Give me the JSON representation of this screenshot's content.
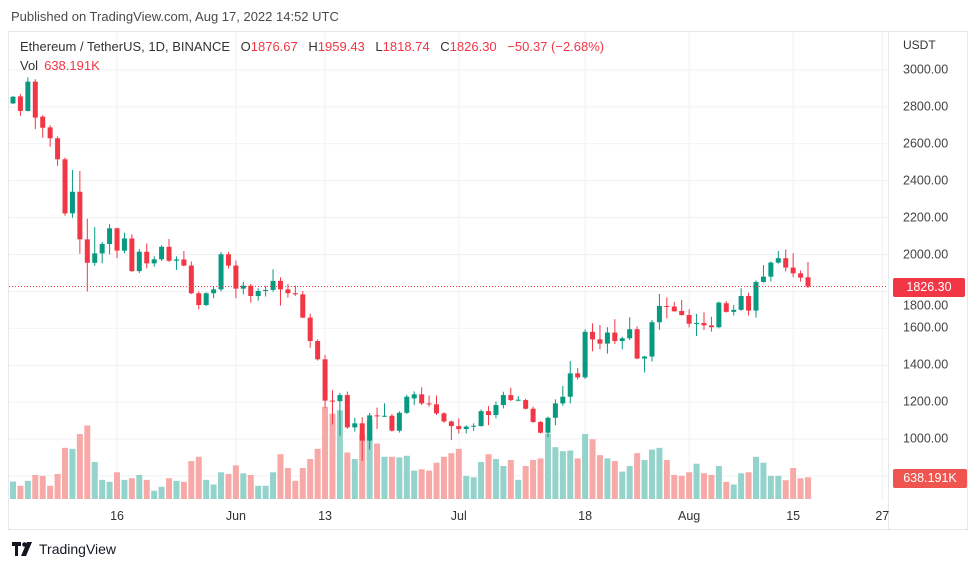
{
  "header": {
    "published": "Published on TradingView.com, Aug 17, 2022 14:52 UTC"
  },
  "legend": {
    "symbol": "Ethereum / TetherUS, 1D, BINANCE",
    "o_label": "O",
    "o": "1876.67",
    "h_label": "H",
    "h": "1959.43",
    "l_label": "L",
    "l": "1818.74",
    "c_label": "C",
    "c": "1826.30",
    "change": "−50.37 (−2.68%)",
    "vol_label": "Vol",
    "vol": "638.191K"
  },
  "axis": {
    "unit": "USDT",
    "last_price": "1826.30",
    "last_volume": "638.191K"
  },
  "footer": {
    "brand": "TradingView"
  },
  "colors": {
    "up": "#089981",
    "down": "#f23645",
    "up_volume": "#94d3cb",
    "down_volume": "#f7a9a8",
    "grid": "#f0f1f4"
  },
  "chart_data": {
    "type": "candlestick",
    "title": "Ethereum / TetherUS, 1D, BINANCE",
    "ylabel": "USDT",
    "ylim": [
      800,
      3100
    ],
    "grid": true,
    "y_ticks": [
      "3000.00",
      "2800.00",
      "2600.00",
      "2400.00",
      "2200.00",
      "2000.00",
      "1800.00",
      "1600.00",
      "1400.00",
      "1200.00",
      "1000.00"
    ],
    "x_ticks": [
      {
        "label": "16",
        "date": "2022-05-16"
      },
      {
        "label": "Jun",
        "date": "2022-06-01"
      },
      {
        "label": "13",
        "date": "2022-06-13"
      },
      {
        "label": "Jul",
        "date": "2022-07-01"
      },
      {
        "label": "18",
        "date": "2022-07-18"
      },
      {
        "label": "Aug",
        "date": "2022-08-01"
      },
      {
        "label": "15",
        "date": "2022-08-15"
      },
      {
        "label": "27",
        "date": "2022-08-27"
      }
    ],
    "columns": [
      "date",
      "open",
      "high",
      "low",
      "close",
      "volume_k"
    ],
    "candles": [
      [
        "2022-05-02",
        2819,
        2860,
        2815,
        2855,
        513
      ],
      [
        "2022-05-03",
        2857,
        2870,
        2752,
        2778,
        387
      ],
      [
        "2022-05-04",
        2778,
        2960,
        2775,
        2937,
        532
      ],
      [
        "2022-05-05",
        2937,
        2950,
        2680,
        2742,
        706
      ],
      [
        "2022-05-06",
        2747,
        2755,
        2633,
        2687,
        677
      ],
      [
        "2022-05-07",
        2689,
        2700,
        2584,
        2630,
        387
      ],
      [
        "2022-05-08",
        2630,
        2640,
        2481,
        2516,
        735
      ],
      [
        "2022-05-09",
        2516,
        2525,
        2210,
        2223,
        1499
      ],
      [
        "2022-05-10",
        2223,
        2458,
        2199,
        2340,
        1470
      ],
      [
        "2022-05-11",
        2340,
        2452,
        2004,
        2082,
        1905
      ],
      [
        "2022-05-12",
        2082,
        2194,
        1800,
        1955,
        2156
      ],
      [
        "2022-05-13",
        1955,
        2149,
        1939,
        2006,
        1083
      ],
      [
        "2022-05-14",
        2006,
        2068,
        1952,
        2057,
        561
      ],
      [
        "2022-05-15",
        2057,
        2165,
        2000,
        2142,
        503
      ],
      [
        "2022-05-16",
        2142,
        2145,
        1980,
        2021,
        783
      ],
      [
        "2022-05-17",
        2021,
        2118,
        2006,
        2087,
        561
      ],
      [
        "2022-05-18",
        2087,
        2110,
        1905,
        1910,
        609
      ],
      [
        "2022-05-19",
        1910,
        2030,
        1900,
        2015,
        706
      ],
      [
        "2022-05-20",
        2015,
        2060,
        1925,
        1952,
        561
      ],
      [
        "2022-05-21",
        1952,
        1990,
        1935,
        1974,
        242
      ],
      [
        "2022-05-22",
        1974,
        2050,
        1965,
        2042,
        358
      ],
      [
        "2022-05-23",
        2042,
        2084,
        1960,
        1966,
        609
      ],
      [
        "2022-05-24",
        1966,
        1990,
        1916,
        1973,
        532
      ],
      [
        "2022-05-25",
        1973,
        2019,
        1935,
        1940,
        503
      ],
      [
        "2022-05-26",
        1940,
        1962,
        1785,
        1790,
        1112
      ],
      [
        "2022-05-27",
        1790,
        1800,
        1703,
        1726,
        1238
      ],
      [
        "2022-05-28",
        1726,
        1795,
        1720,
        1790,
        561
      ],
      [
        "2022-05-29",
        1790,
        1826,
        1763,
        1811,
        425
      ],
      [
        "2022-05-30",
        1811,
        2014,
        1800,
        2001,
        783
      ],
      [
        "2022-05-31",
        2001,
        2014,
        1925,
        1940,
        735
      ],
      [
        "2022-06-01",
        1940,
        1967,
        1763,
        1815,
        986
      ],
      [
        "2022-06-02",
        1815,
        1851,
        1784,
        1831,
        754
      ],
      [
        "2022-06-03",
        1831,
        1840,
        1739,
        1775,
        706
      ],
      [
        "2022-06-04",
        1775,
        1817,
        1750,
        1802,
        387
      ],
      [
        "2022-06-05",
        1802,
        1830,
        1772,
        1808,
        387
      ],
      [
        "2022-06-06",
        1808,
        1920,
        1798,
        1857,
        783
      ],
      [
        "2022-06-07",
        1857,
        1876,
        1723,
        1811,
        1315
      ],
      [
        "2022-06-08",
        1811,
        1840,
        1766,
        1790,
        909
      ],
      [
        "2022-06-09",
        1790,
        1832,
        1776,
        1784,
        532
      ],
      [
        "2022-06-10",
        1784,
        1802,
        1655,
        1658,
        909
      ],
      [
        "2022-06-11",
        1658,
        1680,
        1495,
        1531,
        1170
      ],
      [
        "2022-06-12",
        1531,
        1540,
        1425,
        1432,
        1470
      ],
      [
        "2022-06-13",
        1432,
        1455,
        1166,
        1208,
        2700
      ],
      [
        "2022-06-14",
        1208,
        1265,
        1079,
        1205,
        2500
      ],
      [
        "2022-06-15",
        1205,
        1250,
        1018,
        1238,
        2600
      ],
      [
        "2022-06-16",
        1238,
        1257,
        1055,
        1063,
        1363
      ],
      [
        "2022-06-17",
        1063,
        1115,
        1040,
        1085,
        1170
      ],
      [
        "2022-06-18",
        1085,
        1118,
        881,
        991,
        1900
      ],
      [
        "2022-06-19",
        991,
        1141,
        943,
        1128,
        2300
      ],
      [
        "2022-06-20",
        1128,
        1170,
        1054,
        1124,
        1625
      ],
      [
        "2022-06-21",
        1124,
        1193,
        1120,
        1126,
        1238
      ],
      [
        "2022-06-22",
        1126,
        1135,
        1040,
        1045,
        1238
      ],
      [
        "2022-06-23",
        1045,
        1150,
        1035,
        1142,
        1218
      ],
      [
        "2022-06-24",
        1142,
        1240,
        1135,
        1229,
        1267
      ],
      [
        "2022-06-25",
        1220,
        1258,
        1185,
        1242,
        832
      ],
      [
        "2022-06-26",
        1242,
        1280,
        1185,
        1193,
        870
      ],
      [
        "2022-06-27",
        1193,
        1236,
        1175,
        1188,
        832
      ],
      [
        "2022-06-28",
        1188,
        1236,
        1130,
        1139,
        1064
      ],
      [
        "2022-06-29",
        1139,
        1145,
        1088,
        1095,
        1238
      ],
      [
        "2022-06-30",
        1095,
        1100,
        994,
        1070,
        1344
      ],
      [
        "2022-07-01",
        1070,
        1112,
        1030,
        1054,
        1470
      ],
      [
        "2022-07-02",
        1054,
        1074,
        1030,
        1067,
        677
      ],
      [
        "2022-07-03",
        1067,
        1085,
        1045,
        1072,
        638
      ],
      [
        "2022-07-04",
        1070,
        1160,
        1067,
        1151,
        1083
      ],
      [
        "2022-07-05",
        1151,
        1178,
        1075,
        1130,
        1315
      ],
      [
        "2022-07-06",
        1130,
        1202,
        1112,
        1184,
        1170
      ],
      [
        "2022-07-07",
        1184,
        1256,
        1166,
        1238,
        967
      ],
      [
        "2022-07-08",
        1238,
        1278,
        1205,
        1211,
        1141
      ],
      [
        "2022-07-09",
        1210,
        1233,
        1205,
        1213,
        561
      ],
      [
        "2022-07-10",
        1211,
        1218,
        1160,
        1164,
        967
      ],
      [
        "2022-07-11",
        1164,
        1175,
        1088,
        1092,
        1141
      ],
      [
        "2022-07-12",
        1092,
        1098,
        1030,
        1034,
        1189
      ],
      [
        "2022-07-13",
        1034,
        1121,
        1010,
        1115,
        1915
      ],
      [
        "2022-07-14",
        1115,
        1215,
        1075,
        1193,
        1518
      ],
      [
        "2022-07-15",
        1193,
        1287,
        1180,
        1229,
        1402
      ],
      [
        "2022-07-16",
        1229,
        1422,
        1193,
        1356,
        1421
      ],
      [
        "2022-07-17",
        1356,
        1385,
        1322,
        1334,
        1189
      ],
      [
        "2022-07-18",
        1334,
        1595,
        1325,
        1581,
        1905
      ],
      [
        "2022-07-19",
        1581,
        1627,
        1475,
        1540,
        1750
      ],
      [
        "2022-07-20",
        1540,
        1618,
        1486,
        1517,
        1286
      ],
      [
        "2022-07-21",
        1517,
        1606,
        1463,
        1577,
        1189
      ],
      [
        "2022-07-22",
        1577,
        1649,
        1515,
        1531,
        1112
      ],
      [
        "2022-07-23",
        1531,
        1555,
        1486,
        1546,
        803
      ],
      [
        "2022-07-24",
        1546,
        1660,
        1536,
        1595,
        967
      ],
      [
        "2022-07-25",
        1595,
        1610,
        1432,
        1436,
        1344
      ],
      [
        "2022-07-26",
        1436,
        1450,
        1360,
        1447,
        1141
      ],
      [
        "2022-07-27",
        1447,
        1645,
        1420,
        1633,
        1450
      ],
      [
        "2022-07-28",
        1633,
        1786,
        1592,
        1721,
        1499
      ],
      [
        "2022-07-29",
        1721,
        1768,
        1654,
        1718,
        1141
      ],
      [
        "2022-07-30",
        1718,
        1743,
        1690,
        1692,
        706
      ],
      [
        "2022-07-31",
        1694,
        1754,
        1668,
        1672,
        677
      ],
      [
        "2022-08-01",
        1672,
        1703,
        1605,
        1625,
        783
      ],
      [
        "2022-08-02",
        1625,
        1678,
        1558,
        1629,
        1035
      ],
      [
        "2022-08-03",
        1629,
        1687,
        1591,
        1616,
        754
      ],
      [
        "2022-08-04",
        1616,
        1662,
        1582,
        1606,
        706
      ],
      [
        "2022-08-05",
        1606,
        1745,
        1600,
        1739,
        967
      ],
      [
        "2022-08-06",
        1736,
        1748,
        1685,
        1689,
        503
      ],
      [
        "2022-08-07",
        1689,
        1727,
        1669,
        1700,
        425
      ],
      [
        "2022-08-08",
        1700,
        1817,
        1695,
        1775,
        754
      ],
      [
        "2022-08-09",
        1775,
        1793,
        1669,
        1696,
        783
      ],
      [
        "2022-08-10",
        1696,
        1859,
        1658,
        1851,
        1238
      ],
      [
        "2022-08-11",
        1851,
        1943,
        1848,
        1880,
        1064
      ],
      [
        "2022-08-12",
        1880,
        1962,
        1853,
        1956,
        677
      ],
      [
        "2022-08-13",
        1956,
        2019,
        1950,
        1980,
        677
      ],
      [
        "2022-08-14",
        1980,
        2028,
        1908,
        1929,
        551
      ],
      [
        "2022-08-15",
        1929,
        2007,
        1877,
        1898,
        909
      ],
      [
        "2022-08-16",
        1898,
        1913,
        1853,
        1875,
        609
      ],
      [
        "2022-08-17",
        1876.67,
        1959.43,
        1818.74,
        1826.3,
        638.191
      ]
    ]
  }
}
